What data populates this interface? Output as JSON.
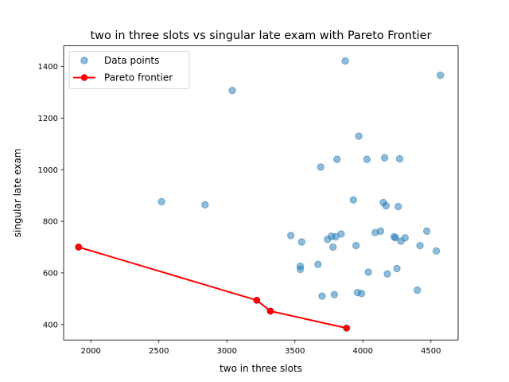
{
  "chart_data": {
    "type": "scatter",
    "title": "two in three slots vs singular late exam with Pareto Frontier",
    "xlabel": "two in three slots",
    "ylabel": "singular late exam",
    "xlim": [
      1800,
      4700
    ],
    "ylim": [
      340,
      1480
    ],
    "xticks": [
      2000,
      2500,
      3000,
      3500,
      4000,
      4500
    ],
    "yticks": [
      400,
      600,
      800,
      1000,
      1200,
      1400
    ],
    "grid": false,
    "legend_position": "upper-left",
    "series": [
      {
        "name": "Data points",
        "kind": "scatter",
        "color": "#1f77b4",
        "alpha": 0.5,
        "points": [
          [
            1910,
            700
          ],
          [
            2520,
            876
          ],
          [
            2840,
            864
          ],
          [
            3040,
            1307
          ],
          [
            3220,
            494
          ],
          [
            3320,
            452
          ],
          [
            3470,
            745
          ],
          [
            3540,
            614
          ],
          [
            3540,
            626
          ],
          [
            3550,
            720
          ],
          [
            3670,
            633
          ],
          [
            3690,
            1010
          ],
          [
            3700,
            510
          ],
          [
            3740,
            730
          ],
          [
            3770,
            742
          ],
          [
            3780,
            700
          ],
          [
            3790,
            516
          ],
          [
            3800,
            740
          ],
          [
            3810,
            1040
          ],
          [
            3840,
            751
          ],
          [
            3870,
            1421
          ],
          [
            3880,
            386
          ],
          [
            3930,
            883
          ],
          [
            3950,
            706
          ],
          [
            3960,
            524
          ],
          [
            3970,
            1130
          ],
          [
            3990,
            520
          ],
          [
            4030,
            1040
          ],
          [
            4040,
            603
          ],
          [
            4090,
            756
          ],
          [
            4130,
            762
          ],
          [
            4150,
            873
          ],
          [
            4160,
            1046
          ],
          [
            4170,
            860
          ],
          [
            4180,
            596
          ],
          [
            4230,
            740
          ],
          [
            4240,
            736
          ],
          [
            4250,
            617
          ],
          [
            4260,
            857
          ],
          [
            4270,
            1042
          ],
          [
            4280,
            723
          ],
          [
            4310,
            736
          ],
          [
            4400,
            533
          ],
          [
            4420,
            706
          ],
          [
            4470,
            762
          ],
          [
            4540,
            685
          ],
          [
            4570,
            1366
          ]
        ]
      },
      {
        "name": "Pareto frontier",
        "kind": "line",
        "color": "#ff0000",
        "points": [
          [
            1910,
            700
          ],
          [
            3220,
            494
          ],
          [
            3320,
            452
          ],
          [
            3880,
            386
          ]
        ]
      }
    ]
  }
}
